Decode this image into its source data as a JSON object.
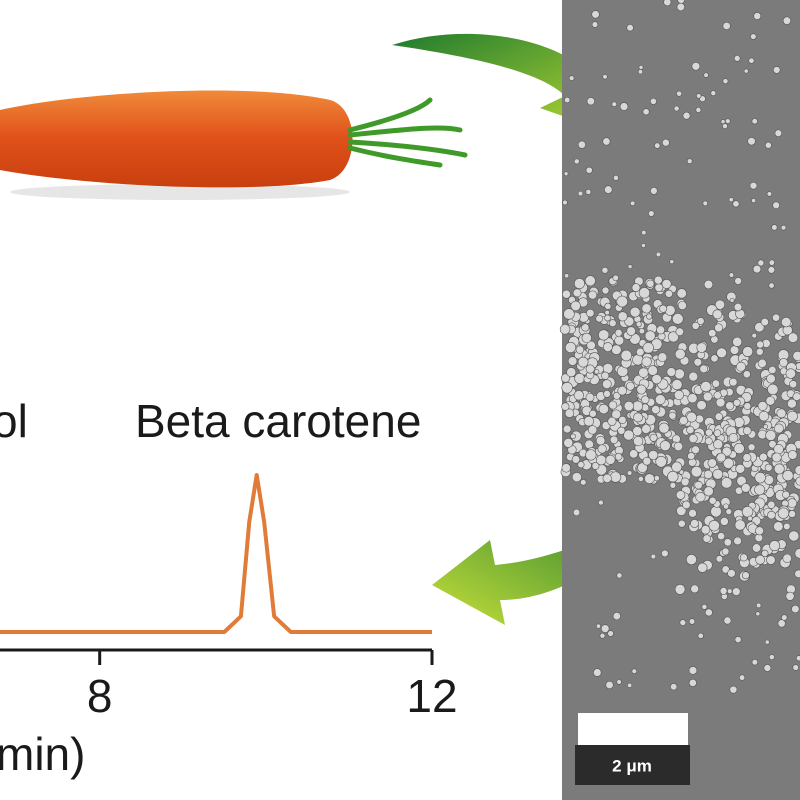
{
  "chart_data": {
    "type": "line",
    "annotations": [
      "ol",
      "Beta carotene"
    ],
    "x_label": "min)",
    "x": [
      6.8,
      9.5,
      9.7,
      9.8,
      9.89,
      9.98,
      10.1,
      10.3,
      12
    ],
    "series": [
      {
        "color": "#e07b39",
        "values": [
          0,
          0,
          0.1,
          0.7,
          1,
          0.7,
          0.1,
          0,
          0
        ]
      }
    ],
    "xlim": [
      6.8,
      12
    ],
    "ylim": [
      0,
      1
    ],
    "xticks": [
      8,
      12
    ]
  },
  "scale_bar": "2 μm"
}
